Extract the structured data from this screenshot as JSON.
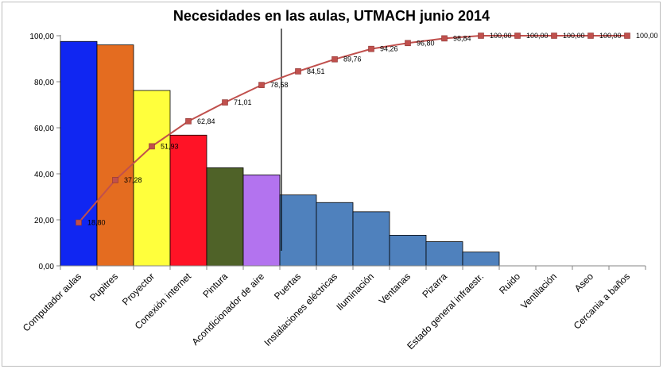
{
  "chart_data": {
    "type": "bar",
    "title": "Necesidades en las aulas, UTMACH junio 2014",
    "xlabel": "",
    "ylabel": "",
    "ylim": [
      0,
      100
    ],
    "yticks": [
      "0,00",
      "20,00",
      "40,00",
      "60,00",
      "80,00",
      "100,00"
    ],
    "grid": false,
    "categories": [
      "Computador aulas",
      "Pupitres",
      "Proyector",
      "Conexión internet",
      "Pintura",
      "Acondicionador de aire",
      "Puertas",
      "Instalaciones eléctricas",
      "Iluminación",
      "Ventanas",
      "Pizarra",
      "Estado general infraestr.",
      "Ruido",
      "Ventilación",
      "Aseo",
      "Cercania a baños"
    ],
    "series": [
      {
        "type": "bar",
        "values": [
          97.5,
          96.0,
          76.2,
          56.8,
          42.6,
          39.5,
          30.8,
          27.5,
          23.5,
          13.3,
          10.5,
          6.0,
          0,
          0,
          0,
          0
        ],
        "colors": [
          "#1026f2",
          "#e46c20",
          "#ffff3c",
          "#ff1326",
          "#4f6228",
          "#b373ef",
          "#4f81bd",
          "#4f81bd",
          "#4f81bd",
          "#4f81bd",
          "#4f81bd",
          "#4f81bd",
          "#4f81bd",
          "#4f81bd",
          "#4f81bd",
          "#4f81bd"
        ]
      },
      {
        "type": "line",
        "values": [
          18.8,
          37.28,
          51.93,
          62.84,
          71.01,
          78.58,
          84.51,
          89.76,
          94.26,
          96.8,
          98.84,
          100.0,
          100.0,
          100.0,
          100.0,
          100.0
        ],
        "labels": [
          "18,80",
          "37,28",
          "51,93",
          "62,84",
          "71,01",
          "78,58",
          "84,51",
          "89,76",
          "94,26",
          "96,80",
          "98,84",
          "100,00",
          "100,00",
          "100,00",
          "100,00",
          "100,00"
        ],
        "color": "#c0504d"
      }
    ],
    "annotation": "vertical separator line between Acondicionador de aire and Puertas"
  }
}
